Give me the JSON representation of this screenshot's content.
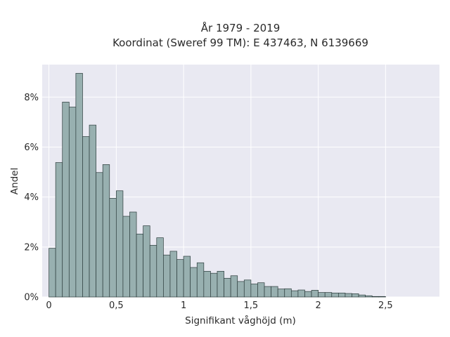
{
  "chart_data": {
    "type": "bar",
    "title": "År 1979 - 2019",
    "subtitle": "Koordinat (Sweref 99 TM): E 437463, N 6139669",
    "xlabel": "Signifikant våghöjd (m)",
    "ylabel": "Andel",
    "bin_width": 0.05,
    "x_start": 0.0,
    "xlim": [
      -0.05,
      2.9
    ],
    "ylim": [
      0,
      9.3
    ],
    "x_ticks": [
      {
        "value": 0,
        "label": "0"
      },
      {
        "value": 0.5,
        "label": "0,5"
      },
      {
        "value": 1,
        "label": "1"
      },
      {
        "value": 1.5,
        "label": "1,5"
      },
      {
        "value": 2,
        "label": "2"
      },
      {
        "value": 2.5,
        "label": "2,5"
      }
    ],
    "y_ticks": [
      {
        "value": 0,
        "label": "0%"
      },
      {
        "value": 2,
        "label": "2%"
      },
      {
        "value": 4,
        "label": "4%"
      },
      {
        "value": 6,
        "label": "6%"
      },
      {
        "value": 8,
        "label": "8%"
      }
    ],
    "values": [
      1.95,
      5.38,
      7.8,
      7.6,
      8.95,
      6.42,
      6.88,
      4.98,
      5.3,
      3.95,
      4.25,
      3.23,
      3.4,
      2.52,
      2.85,
      2.07,
      2.37,
      1.68,
      1.83,
      1.5,
      1.63,
      1.18,
      1.37,
      1.03,
      0.95,
      1.03,
      0.75,
      0.85,
      0.62,
      0.68,
      0.52,
      0.57,
      0.42,
      0.42,
      0.32,
      0.33,
      0.25,
      0.28,
      0.22,
      0.27,
      0.18,
      0.18,
      0.16,
      0.16,
      0.14,
      0.13,
      0.08,
      0.05,
      0.02,
      0.02
    ],
    "grid": true,
    "colors": {
      "plot_background": "#e9e9f2",
      "grid": "#ffffff",
      "bar_fill": "#98b0b0",
      "bar_stroke": "#2c3c3c"
    }
  }
}
